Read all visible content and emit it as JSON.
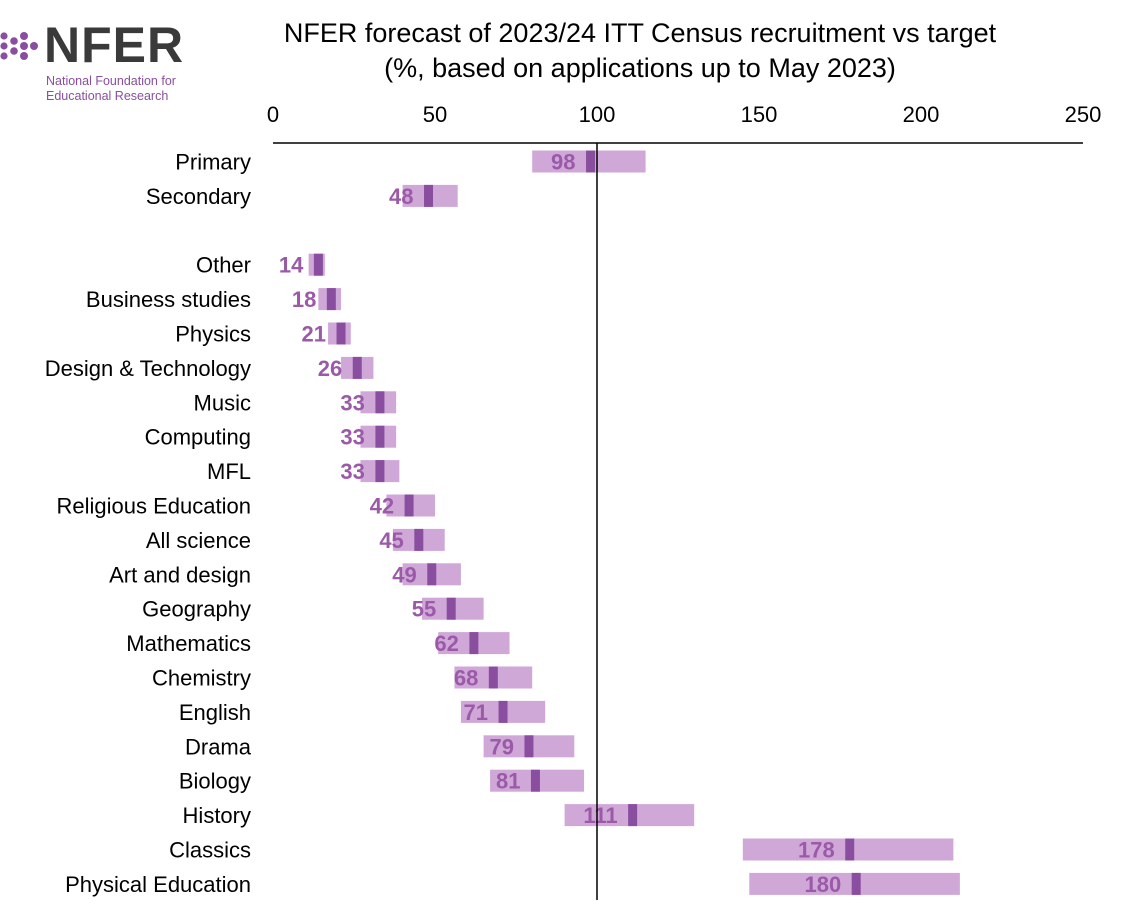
{
  "logo": {
    "name": "NFER",
    "line1": "National Foundation for",
    "line2": "Educational Research",
    "colors": {
      "text": "#3a3a3a",
      "dots": "#8a4ea0"
    }
  },
  "chart_data": {
    "type": "bar",
    "title_line1": "NFER forecast of 2023/24 ITT Census recruitment vs target",
    "title_line2": "(%, based on applications up to May 2023)",
    "xlim": [
      0,
      250
    ],
    "xticks": [
      0,
      50,
      100,
      150,
      200,
      250
    ],
    "reference_line": 100,
    "orientation": "horizontal",
    "axis_position": "top",
    "grid": false,
    "colors": {
      "range": "#cfa8d8",
      "marker": "#8a4ea0",
      "label": "#9b5aa8"
    },
    "groups": [
      {
        "categories": [
          "Primary",
          "Secondary"
        ],
        "values": [
          98,
          48
        ],
        "low": [
          80,
          40
        ],
        "high": [
          115,
          57
        ]
      },
      {
        "categories": [
          "Other",
          "Business studies",
          "Physics",
          "Design & Technology",
          "Music",
          "Computing",
          "MFL",
          "Religious Education",
          "All science",
          "Art and design",
          "Geography",
          "Mathematics",
          "Chemistry",
          "English",
          "Drama",
          "Biology",
          "History",
          "Classics",
          "Physical Education"
        ],
        "values": [
          14,
          18,
          21,
          26,
          33,
          33,
          33,
          42,
          45,
          49,
          55,
          62,
          68,
          71,
          79,
          81,
          111,
          178,
          180
        ],
        "low": [
          11,
          14,
          17,
          21,
          27,
          27,
          27,
          35,
          37,
          40,
          46,
          51,
          56,
          58,
          65,
          67,
          90,
          145,
          147
        ],
        "high": [
          16,
          21,
          24,
          31,
          38,
          38,
          39,
          50,
          53,
          58,
          65,
          73,
          80,
          84,
          93,
          96,
          130,
          210,
          212
        ]
      }
    ]
  }
}
